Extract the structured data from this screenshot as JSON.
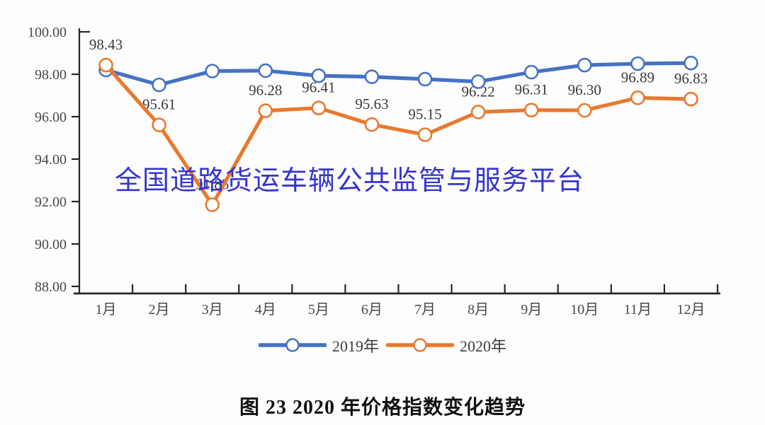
{
  "figure": {
    "watermark": "全国道路货运车辆公共监管与服务平台",
    "caption": "图 23  2020 年价格指数变化趋势"
  },
  "chart_data": {
    "type": "line",
    "categories": [
      "1月",
      "2月",
      "3月",
      "4月",
      "5月",
      "6月",
      "7月",
      "8月",
      "9月",
      "10月",
      "11月",
      "12月"
    ],
    "series": [
      {
        "name": "2019年",
        "color": "#4472c4",
        "values": [
          98.2,
          97.5,
          98.15,
          98.17,
          97.93,
          97.88,
          97.77,
          97.65,
          98.1,
          98.43,
          98.5,
          98.53
        ],
        "labels": null
      },
      {
        "name": "2020年",
        "color": "#e8792e",
        "values": [
          98.43,
          95.61,
          91.85,
          96.28,
          96.41,
          95.63,
          95.15,
          96.22,
          96.31,
          96.3,
          96.89,
          96.83
        ],
        "labels": [
          "98.43",
          "95.61",
          "91.85",
          "96.28",
          "96.41",
          "95.63",
          "95.15",
          "96.22",
          "96.31",
          "96.30",
          "96.89",
          "96.83"
        ]
      }
    ],
    "ylim": [
      88,
      100
    ],
    "ytick_values": [
      100,
      98,
      96,
      94,
      92,
      90,
      88
    ],
    "ytick_labels": [
      "100.00",
      "98.00",
      "96.00",
      "94.00",
      "92.00",
      "90.00",
      "88.00"
    ],
    "grid": false,
    "marker": "open-circle",
    "legend_position": "bottom"
  },
  "colors": {
    "axis": "#262626",
    "tick_label": "#474747",
    "data_label": "#3a3a3a",
    "watermark": "#3434d0",
    "background": "#fdfdfd",
    "series_2019": "#4472c4",
    "series_2020": "#e8792e"
  }
}
